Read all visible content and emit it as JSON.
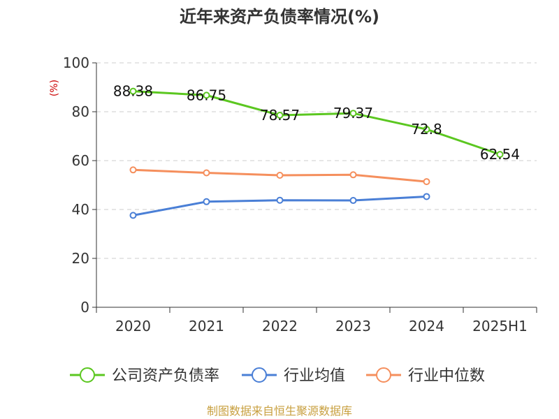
{
  "chart_data": {
    "type": "line",
    "title": "近年来资产负债率情况(%)",
    "ylabel": "(%)",
    "xlabel": "",
    "ylim": [
      0,
      100
    ],
    "yticks": [
      0,
      20,
      40,
      60,
      80,
      100
    ],
    "categories": [
      "2020",
      "2021",
      "2022",
      "2023",
      "2024",
      "2025H1"
    ],
    "grid": true,
    "legend_position": "bottom",
    "series": [
      {
        "name": "公司资产负债率",
        "color": "#5bc720",
        "values": [
          88.38,
          86.75,
          78.57,
          79.37,
          72.8,
          62.54
        ],
        "labels": [
          "88.38",
          "86.75",
          "78.57",
          "79.37",
          "72.8",
          "62.54"
        ]
      },
      {
        "name": "行业均值",
        "color": "#4a7fd6",
        "values": [
          37.6,
          43.2,
          43.8,
          43.7,
          45.3,
          null
        ],
        "labels": []
      },
      {
        "name": "行业中位数",
        "color": "#f58f5d",
        "values": [
          56.2,
          55.0,
          54.0,
          54.2,
          51.4,
          null
        ],
        "labels": []
      }
    ]
  },
  "source_text": "制图数据来自恒生聚源数据库"
}
